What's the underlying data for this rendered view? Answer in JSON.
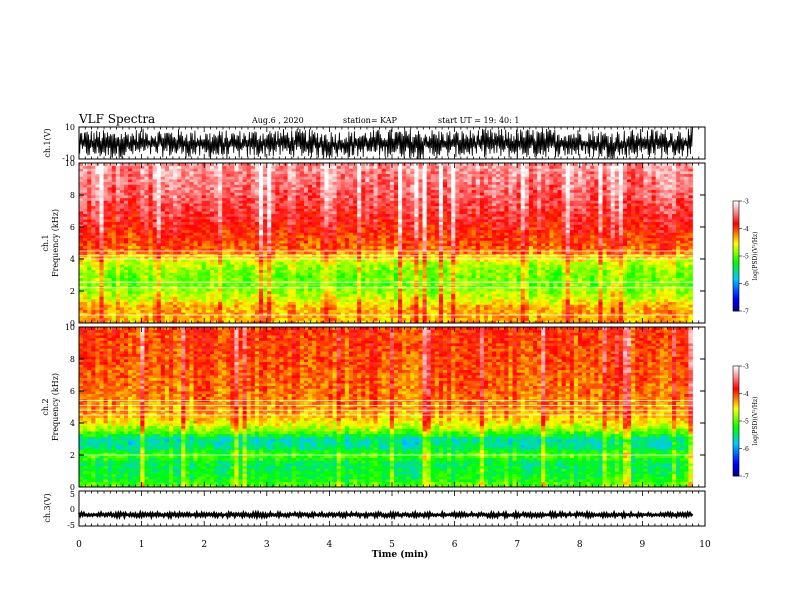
{
  "header": {
    "title": "VLF Spectra",
    "date": "Aug.6 , 2020",
    "station": "station= KAP",
    "start": "start UT = 19: 40: 1"
  },
  "chart_data": [
    {
      "type": "line",
      "panel": "ch1-waveform",
      "ylabel": "ch.1(V)",
      "ylim": [
        -10,
        10
      ],
      "yticks": [
        "10",
        "-10"
      ],
      "xlim": [
        0,
        10
      ],
      "x": [
        0,
        0.5,
        1,
        1.5,
        2,
        2.5,
        3,
        3.5,
        4,
        4.5,
        5,
        5.5,
        6,
        6.5,
        7,
        7.5,
        8,
        8.5,
        9,
        9.5,
        9.8
      ],
      "y_envelope_max": [
        9,
        8,
        9,
        9,
        8,
        8,
        9,
        9,
        8,
        8,
        9,
        9,
        8,
        9,
        9,
        9,
        9,
        8,
        9,
        9,
        10
      ],
      "y_envelope_min": [
        -9,
        -10,
        -9,
        -9,
        -10,
        -10,
        -9,
        -9,
        -10,
        -9,
        -9,
        -10,
        -9,
        -9,
        -10,
        -9,
        -9,
        -10,
        -9,
        -9,
        -9
      ],
      "color": "#000000"
    },
    {
      "type": "heatmap",
      "panel": "ch1-spectrogram",
      "ylabel": "Frequency (kHz)",
      "group_label": "ch.1",
      "ylim": [
        0,
        10
      ],
      "yticks": [
        "0",
        "2",
        "4",
        "6",
        "8",
        "10"
      ],
      "xlim": [
        0,
        10
      ],
      "data_end": 9.8,
      "colorbar": {
        "label": "log(PSD)(V²/Hz)",
        "range": [
          -7,
          -3
        ],
        "ticks": [
          "-3",
          "-4",
          "-5",
          "-6",
          "-7"
        ]
      },
      "profile_khz": [
        0.5,
        1.0,
        1.5,
        2.0,
        2.5,
        3.0,
        3.5,
        3.9,
        4.5,
        5.0,
        6.0,
        8.0,
        10.0
      ],
      "profile_log_psd": [
        -4.3,
        -4.3,
        -4.6,
        -4.8,
        -4.9,
        -4.9,
        -4.8,
        -4.6,
        -4.1,
        -4.0,
        -3.8,
        -3.5,
        -3.3
      ],
      "harmonic_lines_khz": [
        0.5,
        2.2,
        2.55,
        4.0,
        4.2,
        4.5
      ]
    },
    {
      "type": "heatmap",
      "panel": "ch2-spectrogram",
      "ylabel": "Frequency (kHz)",
      "group_label": "ch.2",
      "ylim": [
        0,
        10
      ],
      "yticks": [
        "0",
        "2",
        "4",
        "6",
        "8",
        "10"
      ],
      "xlim": [
        0,
        10
      ],
      "data_end": 9.8,
      "colorbar": {
        "label": "log(PSD)(V²/Hz)",
        "range": [
          -7,
          -3
        ],
        "ticks": [
          "-3",
          "-4",
          "-5",
          "-6",
          "-7"
        ]
      },
      "profile_khz": [
        0.2,
        0.5,
        1.0,
        1.5,
        2.0,
        2.5,
        3.0,
        3.5,
        4.0,
        4.5,
        5.0,
        6.0,
        8.0,
        10.0
      ],
      "profile_log_psd": [
        -5.0,
        -5.2,
        -5.3,
        -5.4,
        -5.0,
        -5.5,
        -5.6,
        -4.9,
        -4.5,
        -4.3,
        -4.2,
        -4.1,
        -4.0,
        -3.9
      ],
      "harmonic_lines_khz": [
        2.0,
        4.5,
        4.8,
        5.1,
        5.4
      ]
    },
    {
      "type": "line",
      "panel": "ch3-waveform",
      "ylabel": "ch.3(V)",
      "ylim": [
        -5,
        5
      ],
      "yticks": [
        "5",
        "0",
        "-5"
      ],
      "xlim": [
        0,
        10
      ],
      "x": [
        0,
        9.8
      ],
      "y_envelope_max": [
        -1.2,
        -1.2
      ],
      "y_envelope_min": [
        -2.4,
        -2.4
      ],
      "color": "#000000"
    }
  ],
  "xaxis": {
    "label": "Time (min)",
    "ticks": [
      "0",
      "1",
      "2",
      "3",
      "4",
      "5",
      "6",
      "7",
      "8",
      "9",
      "10"
    ]
  },
  "colors": {
    "background": "#ffffff",
    "colormap": [
      "#000080",
      "#0000ff",
      "#00c8ff",
      "#00ff00",
      "#ffff00",
      "#ff0000",
      "#ffffff"
    ]
  }
}
